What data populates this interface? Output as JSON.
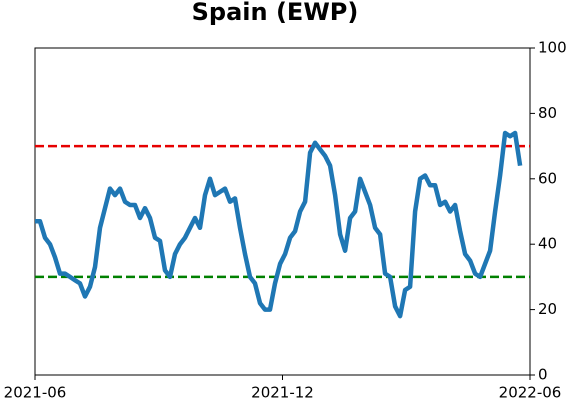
{
  "chart_data": {
    "type": "line",
    "title": "Spain (EWP)",
    "series": [
      {
        "name": "Spain (EWP)",
        "color": "#1f77b4",
        "values": [
          47,
          47,
          42,
          40,
          36,
          31,
          31,
          30,
          29,
          28,
          24,
          27,
          33,
          45,
          51,
          57,
          55,
          57,
          53,
          52,
          52,
          48,
          51,
          48,
          42,
          41,
          32,
          30,
          37,
          40,
          42,
          45,
          48,
          45,
          55,
          60,
          55,
          56,
          57,
          53,
          54,
          45,
          37,
          30,
          28,
          22,
          20,
          20,
          28,
          34,
          37,
          42,
          44,
          50,
          53,
          68,
          71,
          69,
          67,
          64,
          55,
          43,
          38,
          48,
          50,
          60,
          56,
          52,
          45,
          43,
          31,
          30,
          21,
          18,
          26,
          27,
          50,
          60,
          61,
          58,
          58,
          52,
          53,
          50,
          52,
          44,
          37,
          35,
          31,
          30,
          34,
          38,
          50,
          61,
          74,
          73,
          74,
          64
        ]
      }
    ],
    "hlines": [
      {
        "value": 70,
        "color": "#e60000"
      },
      {
        "value": 30,
        "color": "#008000"
      }
    ],
    "xlim": [
      "2021-06",
      "2022-06"
    ],
    "xticks": [
      "2021-06",
      "2021-12",
      "2022-06"
    ],
    "ylim": [
      0,
      100
    ],
    "yticks": [
      0,
      20,
      40,
      60,
      80,
      100
    ],
    "y_axis_side": "right"
  }
}
